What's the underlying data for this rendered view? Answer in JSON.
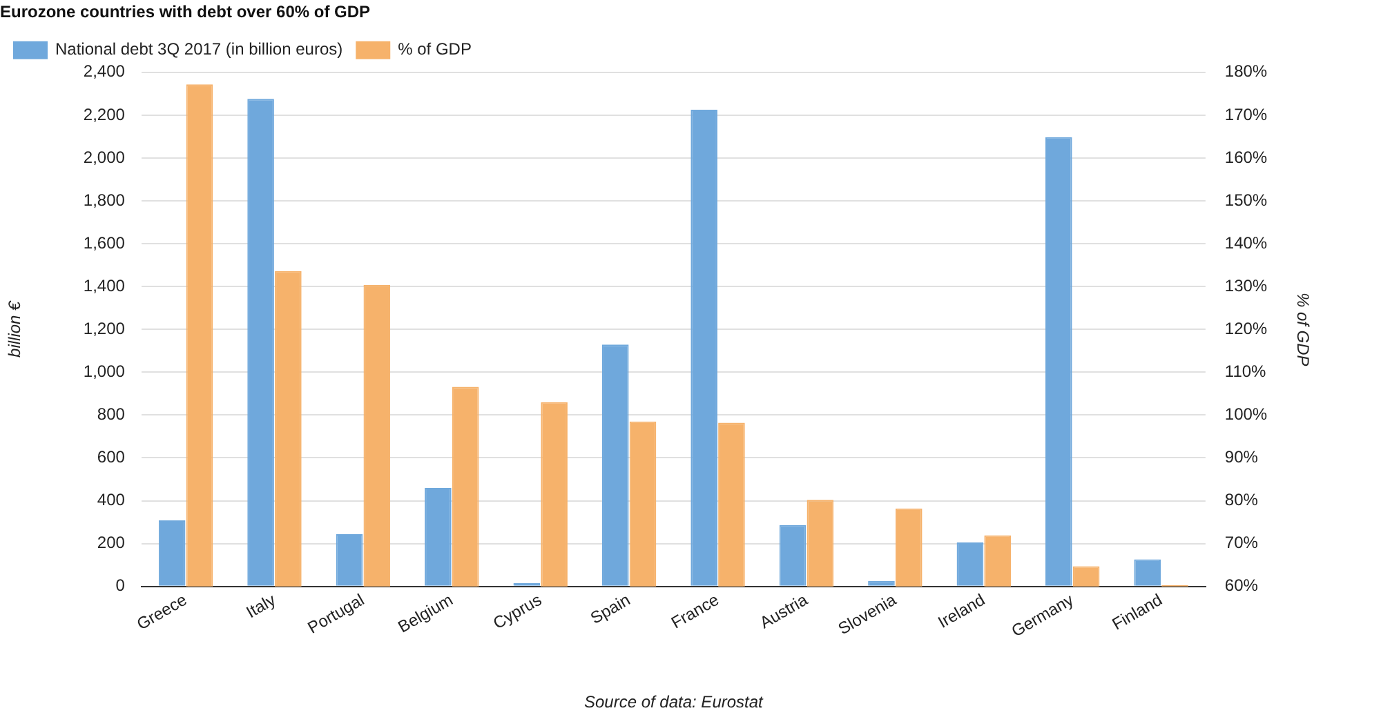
{
  "chart_data": {
    "type": "bar",
    "title": "Eurozone countries with debt over 60% of GDP",
    "ylabel": "billion €",
    "y2label": "% of GDP",
    "categories": [
      "Greece",
      "Italy",
      "Portugal",
      "Belgium",
      "Cyprus",
      "Spain",
      "France",
      "Austria",
      "Slovenia",
      "Ireland",
      "Germany",
      "Finland"
    ],
    "series": [
      {
        "name": "National debt 3Q 2017 (in billion euros)",
        "color": "#6fa8dc",
        "values": [
          308,
          2276,
          244,
          460,
          15,
          1129,
          2225,
          287,
          26,
          205,
          2097,
          126
        ]
      },
      {
        "name": "% of GDP",
        "color": "#f6b26b",
        "axis": "y2",
        "values": [
          177.2,
          133.6,
          130.4,
          106.6,
          103,
          98.5,
          98.2,
          80.2,
          78.2,
          71.9,
          64.7,
          60.3
        ]
      }
    ],
    "ylim": [
      0,
      2400
    ],
    "yticks": [
      {
        "value": 0,
        "label": "0"
      },
      {
        "value": 200,
        "label": "200"
      },
      {
        "value": 400,
        "label": "400"
      },
      {
        "value": 600,
        "label": "600"
      },
      {
        "value": 800,
        "label": "800"
      },
      {
        "value": 1000,
        "label": "1,000"
      },
      {
        "value": 1200,
        "label": "1,200"
      },
      {
        "value": 1400,
        "label": "1,400"
      },
      {
        "value": 1600,
        "label": "1,600"
      },
      {
        "value": 1800,
        "label": "1,800"
      },
      {
        "value": 2000,
        "label": "2,000"
      },
      {
        "value": 2200,
        "label": "2,200"
      },
      {
        "value": 2400,
        "label": "2,400"
      }
    ],
    "y2lim": [
      60,
      180
    ],
    "y2ticks": [
      {
        "value": 60,
        "label": "60%"
      },
      {
        "value": 70,
        "label": "70%"
      },
      {
        "value": 80,
        "label": "80%"
      },
      {
        "value": 90,
        "label": "90%"
      },
      {
        "value": 100,
        "label": "100%"
      },
      {
        "value": 110,
        "label": "110%"
      },
      {
        "value": 120,
        "label": "120%"
      },
      {
        "value": 130,
        "label": "130%"
      },
      {
        "value": 140,
        "label": "140%"
      },
      {
        "value": 150,
        "label": "150%"
      },
      {
        "value": 160,
        "label": "160%"
      },
      {
        "value": 170,
        "label": "170%"
      },
      {
        "value": 180,
        "label": "180%"
      }
    ],
    "grid": "y",
    "legend": "top left",
    "annotations": [
      "Source of data: Eurostat"
    ]
  }
}
